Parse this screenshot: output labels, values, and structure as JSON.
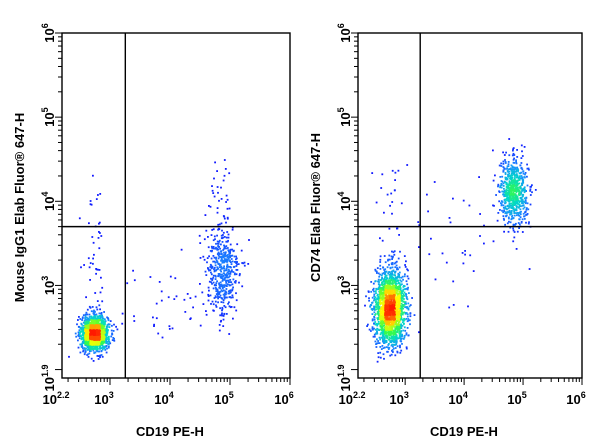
{
  "colors": {
    "background": "#ffffff",
    "axes": "#000000",
    "gate": "#000000",
    "density_low": "#1a1aff",
    "density_mid": "#00d9c8",
    "density_high": "#ff2000"
  },
  "chart_data": [
    {
      "type": "scatter",
      "style": "flow cytometry dot plot, density colored (blue low to red high)",
      "xlabel": "CD19 PE-H",
      "ylabel": "Mouse IgG1 Elab Fluor® 647-H",
      "xscale": "log",
      "yscale": "log",
      "xlim": [
        158.5,
        1000000
      ],
      "ylim": [
        79.4,
        1000000
      ],
      "x_ticks": [
        {
          "base": "10",
          "exp": "2.2"
        },
        {
          "base": "10",
          "exp": "3"
        },
        {
          "base": "10",
          "exp": "4"
        },
        {
          "base": "10",
          "exp": "5"
        },
        {
          "base": "10",
          "exp": "6"
        }
      ],
      "y_ticks": [
        {
          "base": "10",
          "exp": "1.9"
        },
        {
          "base": "10",
          "exp": "3"
        },
        {
          "base": "10",
          "exp": "4"
        },
        {
          "base": "10",
          "exp": "5"
        },
        {
          "base": "10",
          "exp": "6"
        }
      ],
      "quadrant_gate": {
        "x": 1800,
        "y": 5000
      },
      "grid": false,
      "populations": [
        {
          "name_visible": false,
          "center_x": 560,
          "center_y": 270,
          "log_spread_x": 0.11,
          "log_spread_y": 0.1,
          "count": 1500
        },
        {
          "name_visible": false,
          "center_x": 75000,
          "center_y": 1400,
          "log_spread_x": 0.14,
          "log_spread_y": 0.28,
          "count": 460
        },
        {
          "name_visible": false,
          "center_x": 550,
          "center_y": 1000,
          "log_spread_x": 0.09,
          "log_spread_y": 0.6,
          "count": 60
        },
        {
          "name_visible": false,
          "center_x": 5000,
          "center_y": 600,
          "log_spread_x": 0.5,
          "log_spread_y": 0.25,
          "count": 35
        },
        {
          "name_visible": false,
          "center_x": 70000,
          "center_y": 10000,
          "log_spread_x": 0.15,
          "log_spread_y": 0.3,
          "count": 35
        }
      ]
    },
    {
      "type": "scatter",
      "style": "flow cytometry dot plot, density colored (blue low to red high)",
      "xlabel": "CD19 PE-H",
      "ylabel": "CD74 Elab Fluor® 647-H",
      "xscale": "log",
      "yscale": "log",
      "xlim": [
        158.5,
        1000000
      ],
      "ylim": [
        79.4,
        1000000
      ],
      "x_ticks": [
        {
          "base": "10",
          "exp": "2.2"
        },
        {
          "base": "10",
          "exp": "3"
        },
        {
          "base": "10",
          "exp": "4"
        },
        {
          "base": "10",
          "exp": "5"
        },
        {
          "base": "10",
          "exp": "6"
        }
      ],
      "y_ticks": [
        {
          "base": "10",
          "exp": "1.9"
        },
        {
          "base": "10",
          "exp": "3"
        },
        {
          "base": "10",
          "exp": "4"
        },
        {
          "base": "10",
          "exp": "5"
        },
        {
          "base": "10",
          "exp": "6"
        }
      ],
      "quadrant_gate": {
        "x": 1800,
        "y": 5000
      },
      "grid": false,
      "populations": [
        {
          "name_visible": false,
          "center_x": 560,
          "center_y": 550,
          "log_spread_x": 0.13,
          "log_spread_y": 0.22,
          "count": 1900
        },
        {
          "name_visible": false,
          "center_x": 70000,
          "center_y": 13000,
          "log_spread_x": 0.12,
          "log_spread_y": 0.2,
          "count": 650
        },
        {
          "name_visible": false,
          "center_x": 5000,
          "center_y": 3000,
          "log_spread_x": 0.5,
          "log_spread_y": 0.4,
          "count": 40
        },
        {
          "name_visible": false,
          "center_x": 550,
          "center_y": 8000,
          "log_spread_x": 0.12,
          "log_spread_y": 0.4,
          "count": 25
        }
      ]
    }
  ]
}
